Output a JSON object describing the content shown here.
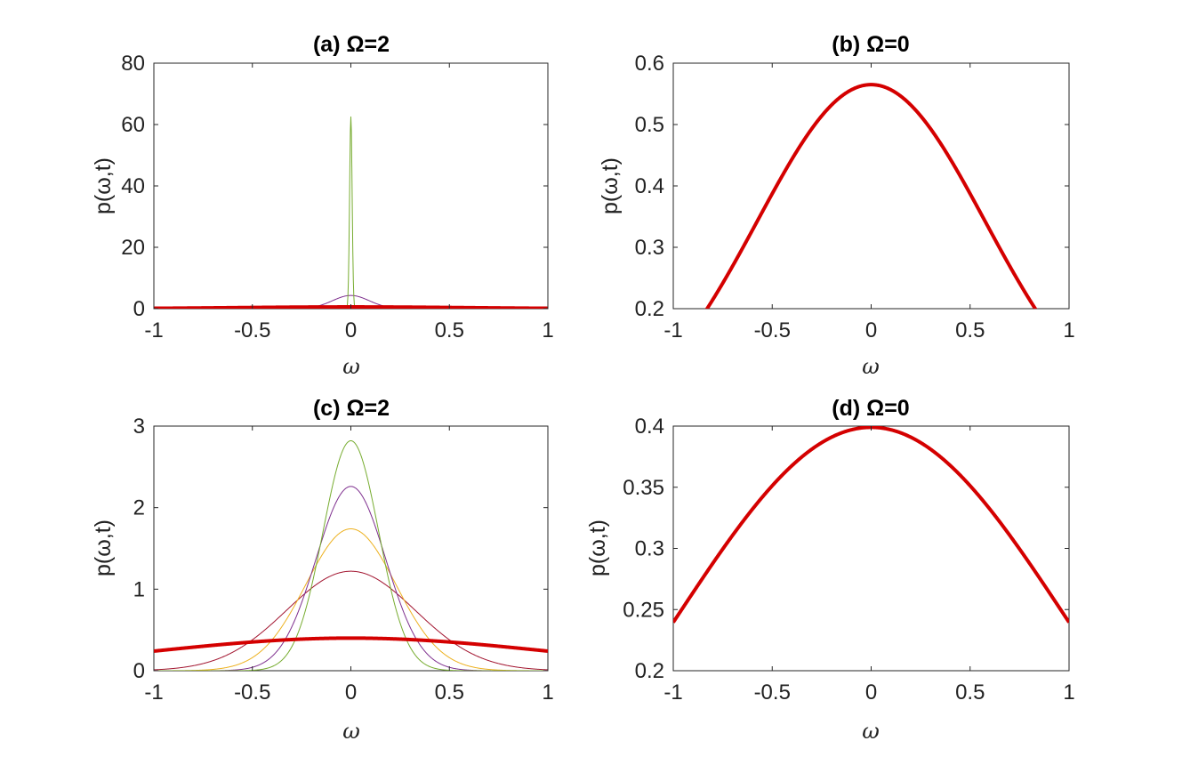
{
  "chart_data": [
    {
      "id": "a",
      "type": "line",
      "title": "(a) Ω=2",
      "xlabel": "ω",
      "ylabel": "p(ω,t)",
      "xlim": [
        -1,
        1
      ],
      "ylim": [
        0,
        80
      ],
      "xticks": [
        -1,
        -0.5,
        0,
        0.5,
        1
      ],
      "xtick_labels": [
        "-1",
        "-0.5",
        "0",
        "0.5",
        "1"
      ],
      "yticks": [
        0,
        20,
        40,
        60,
        80
      ],
      "ytick_labels": [
        "0",
        "20",
        "40",
        "60",
        "80"
      ],
      "series": [
        {
          "name": "purple",
          "color": "#7e2f8e",
          "width": 1,
          "amp": 4.3,
          "sigma": 0.093
        },
        {
          "name": "green",
          "color": "#77ac30",
          "width": 1,
          "amp": 62.5,
          "sigma": 0.0064
        },
        {
          "name": "red",
          "color": "#d40000",
          "width": 4,
          "amp": 0.565,
          "sigma": 0.575
        }
      ]
    },
    {
      "id": "b",
      "type": "line",
      "title": "(b) Ω=0",
      "xlabel": "ω",
      "ylabel": "p(ω,t)",
      "xlim": [
        -1,
        1
      ],
      "ylim": [
        0.2,
        0.6
      ],
      "xticks": [
        -1,
        -0.5,
        0,
        0.5,
        1
      ],
      "xtick_labels": [
        "-1",
        "-0.5",
        "0",
        "0.5",
        "1"
      ],
      "yticks": [
        0.2,
        0.3,
        0.4,
        0.5,
        0.6
      ],
      "ytick_labels": [
        "0.2",
        "0.3",
        "0.4",
        "0.5",
        "0.6"
      ],
      "series": [
        {
          "name": "red",
          "color": "#d40000",
          "width": 4,
          "amp": 0.565,
          "sigma": 0.5753
        }
      ]
    },
    {
      "id": "c",
      "type": "line",
      "title": "(c) Ω=2",
      "xlabel": "ω",
      "ylabel": "p(ω,t)",
      "xlim": [
        -1,
        1
      ],
      "ylim": [
        0,
        3
      ],
      "xticks": [
        -1,
        -0.5,
        0,
        0.5,
        1
      ],
      "xtick_labels": [
        "-1",
        "-0.5",
        "0",
        "0.5",
        "1"
      ],
      "yticks": [
        0,
        1,
        2,
        3
      ],
      "ytick_labels": [
        "0",
        "1",
        "2",
        "3"
      ],
      "series": [
        {
          "name": "brown",
          "color": "#a2142f",
          "width": 1,
          "amp": 1.22,
          "sigma": 0.327
        },
        {
          "name": "yellow",
          "color": "#edb120",
          "width": 1,
          "amp": 1.74,
          "sigma": 0.229
        },
        {
          "name": "purple",
          "color": "#7e2f8e",
          "width": 1,
          "amp": 2.26,
          "sigma": 0.177
        },
        {
          "name": "green",
          "color": "#77ac30",
          "width": 1,
          "amp": 2.82,
          "sigma": 0.141
        },
        {
          "name": "red",
          "color": "#d40000",
          "width": 4,
          "amp": 0.4,
          "sigma": 0.99
        }
      ]
    },
    {
      "id": "d",
      "type": "line",
      "title": "(d) Ω=0",
      "xlabel": "ω",
      "ylabel": "p(ω,t)",
      "xlim": [
        -1,
        1
      ],
      "ylim": [
        0.2,
        0.4
      ],
      "xticks": [
        -1,
        -0.5,
        0,
        0.5,
        1
      ],
      "xtick_labels": [
        "-1",
        "-0.5",
        "0",
        "0.5",
        "1"
      ],
      "yticks": [
        0.2,
        0.25,
        0.3,
        0.35,
        0.4
      ],
      "ytick_labels": [
        "0.2",
        "0.25",
        "0.3",
        "0.35",
        "0.4"
      ],
      "series": [
        {
          "name": "red",
          "color": "#d40000",
          "width": 4,
          "amp": 0.399,
          "sigma": 0.99
        }
      ]
    }
  ]
}
